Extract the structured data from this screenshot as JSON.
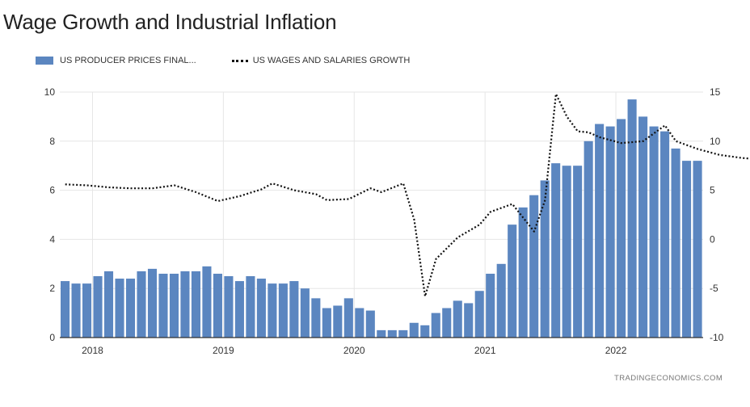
{
  "header": {
    "title": "Wage Growth and Industrial Inflation"
  },
  "footer": {
    "credit": "TRADINGECONOMICS.COM"
  },
  "chart_data": {
    "type": "bar",
    "title": "Wage Growth and Industrial Inflation",
    "legend_position": "top-left",
    "grid": true,
    "x_tick_labels": [
      "2018",
      "2019",
      "2020",
      "2021",
      "2022"
    ],
    "left_axis": {
      "ylim": [
        0,
        10
      ],
      "ticks": [
        0,
        2,
        4,
        6,
        8,
        10
      ],
      "tick_labels": [
        "0",
        "2",
        "4",
        "6",
        "8",
        "10"
      ]
    },
    "right_axis": {
      "ylim": [
        -10,
        15
      ],
      "ticks": [
        -10,
        -5,
        0,
        5,
        10,
        15
      ],
      "tick_labels": [
        "-10",
        "-5",
        "0",
        "5",
        "10",
        "15"
      ]
    },
    "series": [
      {
        "name": "US PRODUCER PRICES FINAL...",
        "type": "bar",
        "axis": "left",
        "color": "#5b86c0",
        "x_start": "2017-10",
        "x_step": "month",
        "values": [
          2.3,
          2.2,
          2.2,
          2.5,
          2.7,
          2.4,
          2.4,
          2.7,
          2.8,
          2.6,
          2.6,
          2.7,
          2.7,
          2.9,
          2.6,
          2.5,
          2.3,
          2.5,
          2.4,
          2.2,
          2.2,
          2.3,
          2.0,
          1.6,
          1.2,
          1.3,
          1.6,
          1.2,
          1.1,
          0.3,
          0.3,
          0.3,
          0.6,
          0.5,
          1.0,
          1.2,
          1.5,
          1.4,
          1.9,
          2.6,
          3.0,
          4.6,
          5.3,
          5.8,
          6.4,
          7.1,
          7.0,
          7.0,
          8.0,
          8.7,
          8.6,
          8.9,
          9.7,
          9.0,
          8.6,
          8.4,
          7.7,
          7.2,
          7.2
        ]
      },
      {
        "name": "US WAGES AND SALARIES GROWTH",
        "type": "line",
        "style": "dotted",
        "axis": "right",
        "color": "#111111",
        "points": [
          [
            "2017-10",
            5.6
          ],
          [
            "2017-12",
            5.5
          ],
          [
            "2018-02",
            5.3
          ],
          [
            "2018-04",
            5.2
          ],
          [
            "2018-06",
            5.2
          ],
          [
            "2018-08",
            5.5
          ],
          [
            "2018-10",
            4.8
          ],
          [
            "2018-12",
            3.9
          ],
          [
            "2019-02",
            4.4
          ],
          [
            "2019-04",
            5.1
          ],
          [
            "2019-05",
            5.7
          ],
          [
            "2019-07",
            5.0
          ],
          [
            "2019-09",
            4.6
          ],
          [
            "2019-10",
            4.0
          ],
          [
            "2019-12",
            4.1
          ],
          [
            "2020-02",
            5.2
          ],
          [
            "2020-03",
            4.8
          ],
          [
            "2020-05",
            5.7
          ],
          [
            "2020-06",
            2.0
          ],
          [
            "2020-07",
            -5.8
          ],
          [
            "2020-08",
            -2.0
          ],
          [
            "2020-10",
            0.2
          ],
          [
            "2020-12",
            1.5
          ],
          [
            "2021-01",
            2.8
          ],
          [
            "2021-03",
            3.6
          ],
          [
            "2021-05",
            0.8
          ],
          [
            "2021-06",
            4.0
          ],
          [
            "2021-07",
            14.8
          ],
          [
            "2021-08",
            12.5
          ],
          [
            "2021-09",
            11.0
          ],
          [
            "2021-10",
            10.9
          ],
          [
            "2021-11",
            10.4
          ],
          [
            "2022-01",
            9.8
          ],
          [
            "2022-03",
            10.0
          ],
          [
            "2022-05",
            11.6
          ],
          [
            "2022-06",
            10.0
          ],
          [
            "2022-08",
            9.2
          ],
          [
            "2022-10",
            8.6
          ],
          [
            "2022-12",
            8.3
          ],
          [
            "2023-01",
            8.2
          ]
        ]
      }
    ]
  }
}
